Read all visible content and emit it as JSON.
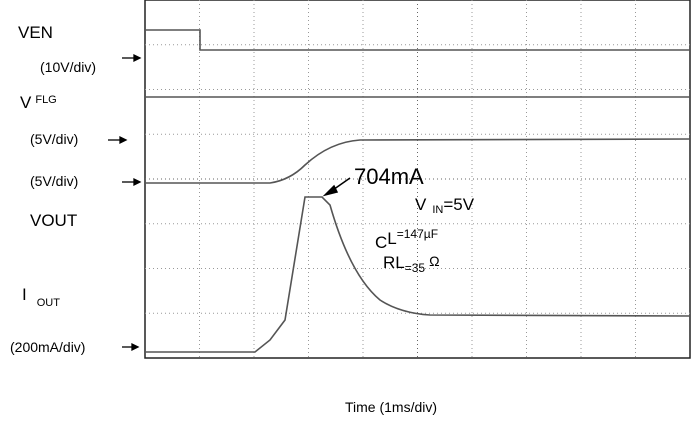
{
  "channels": {
    "ven": {
      "name": "VEN",
      "scale": "(10V/div)"
    },
    "flg": {
      "name": "V",
      "sup": "FLG",
      "scale": "(5V/div)"
    },
    "vout": {
      "name": "VOUT",
      "scale": "(5V/div)"
    },
    "iout": {
      "name": "I",
      "sub": "OUT",
      "scale": "(200mA/div)"
    }
  },
  "annotations": {
    "peak": "704mA",
    "vin": {
      "main": "V",
      "sub": "IN",
      "rest": "=5V"
    },
    "cl": {
      "main": "C",
      "sup": "L",
      "rest": "=147µF"
    },
    "rl": {
      "main": "RL",
      "sub": "=35",
      "rest": "Ω"
    }
  },
  "x_axis_label": "Time (1ms/div)"
}
